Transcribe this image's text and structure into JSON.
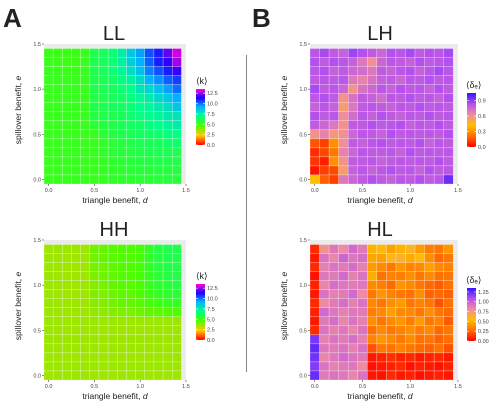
{
  "figure": {
    "panel_letters": [
      "A",
      "B"
    ],
    "divider_color": "#888888"
  },
  "chart_data": [
    {
      "type": "heatmap",
      "title": "LL",
      "xlabel": "triangle benefit, d",
      "ylabel": "spillover benefit, e",
      "xlim": [
        -0.05,
        1.5
      ],
      "ylim": [
        -0.05,
        1.5
      ],
      "xticks": [
        "0.0",
        "0.5",
        "1.0",
        "1.5"
      ],
      "yticks": [
        "0.0",
        "0.5",
        "1.0",
        "1.5"
      ],
      "colorbar_title": "⟨k⟩",
      "colorbar_ticks": [
        "0.0",
        "2.5",
        "5.0",
        "7.5",
        "10.0",
        "12.5"
      ],
      "colorbar_range": [
        0,
        13.5
      ],
      "colorscale": "rainbow",
      "grid_size": 15,
      "values_top_to_bottom": [
        [
          5.1,
          5.1,
          5.1,
          5.1,
          5.2,
          6,
          6.2,
          6.6,
          7.5,
          8.6,
          9.4,
          10.4,
          11,
          12,
          13
        ],
        [
          5.2,
          5.1,
          5.1,
          5.1,
          5.2,
          6,
          6.2,
          6.6,
          7.4,
          8.4,
          9.2,
          10.2,
          11,
          11.5,
          12.6
        ],
        [
          5.2,
          5.2,
          5.1,
          5.1,
          5.2,
          6,
          6.2,
          6.6,
          7.2,
          8,
          8.8,
          9.8,
          10.4,
          11,
          11.6
        ],
        [
          5.2,
          5.2,
          5.2,
          5.2,
          5.2,
          6,
          6.1,
          6.3,
          6.8,
          7.4,
          8.1,
          9.2,
          9.6,
          10.2,
          10.6
        ],
        [
          5.2,
          5.2,
          5.2,
          5.2,
          5.2,
          5.9,
          6.1,
          6.2,
          6.6,
          7,
          7.8,
          8.2,
          8.8,
          9.4,
          10
        ],
        [
          5.2,
          5.2,
          5.2,
          5.2,
          5.2,
          5.9,
          6,
          6.2,
          6.4,
          6.8,
          7.2,
          7.6,
          8.2,
          8.6,
          9.2
        ],
        [
          5.2,
          5.2,
          5.2,
          5.2,
          5.2,
          5.9,
          6,
          6.2,
          6.3,
          6.6,
          7,
          7.2,
          7.6,
          8,
          8.6
        ],
        [
          5.2,
          5.2,
          5.2,
          5.2,
          5.2,
          5.8,
          5.9,
          6,
          6.2,
          6.5,
          6.8,
          7,
          7.3,
          7.6,
          7.8
        ],
        [
          5.2,
          5.2,
          5.2,
          5.2,
          5.2,
          5.6,
          5.8,
          5.9,
          6.1,
          6.3,
          6.4,
          6.8,
          7,
          7.3,
          7.5
        ],
        [
          5.2,
          5.2,
          5.2,
          5.2,
          5.2,
          5.2,
          5.6,
          5.8,
          6,
          6.1,
          6.3,
          6.4,
          6.5,
          6.8,
          6.8
        ],
        [
          5.2,
          5.2,
          5.2,
          5.2,
          5.2,
          5.2,
          5.4,
          5.6,
          5.8,
          5.9,
          6.1,
          6.2,
          6.2,
          6.4,
          6.5
        ],
        [
          5.2,
          5.2,
          5.2,
          5.2,
          5.2,
          5.2,
          5.4,
          5.6,
          5.7,
          5.8,
          5.9,
          6,
          6.1,
          6.1,
          6.1
        ],
        [
          5.2,
          5.2,
          5.2,
          5.2,
          5.2,
          5.2,
          5.3,
          5.5,
          5.6,
          5.7,
          5.8,
          5.8,
          5.9,
          5.9,
          5.9
        ],
        [
          5.2,
          5.2,
          5.2,
          5.2,
          5.2,
          5.2,
          5.3,
          5.4,
          5.5,
          5.6,
          5.7,
          5.7,
          5.8,
          5.8,
          5.8
        ],
        [
          5.2,
          5.2,
          5.2,
          5.2,
          5.2,
          5.2,
          5.3,
          5.4,
          5.5,
          5.5,
          5.6,
          5.6,
          5.7,
          5.7,
          5.7
        ]
      ]
    },
    {
      "type": "heatmap",
      "title": "HH",
      "xlabel": "triangle benefit, d",
      "ylabel": "spillover benefit, e",
      "xlim": [
        -0.05,
        1.5
      ],
      "ylim": [
        -0.05,
        1.5
      ],
      "xticks": [
        "0.0",
        "0.5",
        "1.0",
        "1.5"
      ],
      "yticks": [
        "0.0",
        "0.5",
        "1.0",
        "1.5"
      ],
      "colorbar_title": "⟨k⟩",
      "colorbar_ticks": [
        "0.0",
        "2.5",
        "5.0",
        "7.5",
        "10.0",
        "12.5"
      ],
      "colorbar_range": [
        0,
        13.5
      ],
      "colorscale": "rainbow",
      "grid_size": 15,
      "values_top_to_bottom": [
        [
          3.6,
          3.6,
          3.6,
          3.6,
          3.6,
          4.2,
          4.3,
          4.5,
          4.6,
          4.6,
          4.8,
          5.4,
          5.8,
          6,
          6
        ],
        [
          3.6,
          3.6,
          3.6,
          3.6,
          3.6,
          4.2,
          4.3,
          4.5,
          4.6,
          4.6,
          4.8,
          5.4,
          5.8,
          5.9,
          6
        ],
        [
          3.6,
          3.6,
          3.6,
          3.6,
          3.6,
          4.1,
          4.2,
          4.4,
          4.6,
          4.6,
          4.8,
          5.4,
          5.7,
          5.9,
          5.9
        ],
        [
          3.6,
          3.6,
          3.6,
          3.6,
          3.6,
          4,
          4.2,
          4.4,
          4.5,
          4.6,
          4.8,
          5.3,
          5.6,
          5.8,
          5.9
        ],
        [
          3.6,
          3.6,
          3.6,
          3.6,
          3.6,
          3.9,
          4.1,
          4.3,
          4.5,
          4.5,
          4.7,
          5.2,
          5.5,
          5.7,
          5.8
        ],
        [
          3.6,
          3.6,
          3.6,
          3.6,
          3.6,
          3.9,
          4,
          4.2,
          4.4,
          4.4,
          4.6,
          5,
          5.3,
          5.5,
          5.6
        ],
        [
          3.6,
          3.6,
          3.6,
          3.6,
          3.6,
          3.8,
          3.9,
          4.1,
          4.3,
          4.3,
          4.5,
          4.8,
          5,
          5.2,
          5.3
        ],
        [
          3.6,
          3.6,
          3.6,
          3.6,
          3.6,
          3.7,
          3.8,
          3.9,
          4,
          4,
          4.2,
          4.3,
          4.4,
          4.5,
          4.6
        ],
        [
          3.6,
          3.6,
          3.6,
          3.6,
          3.6,
          3.6,
          3.6,
          3.6,
          3.6,
          3.6,
          3.6,
          3.6,
          3.6,
          3.6,
          3.6
        ],
        [
          3.6,
          3.6,
          3.6,
          3.6,
          3.6,
          3.6,
          3.6,
          3.6,
          3.6,
          3.6,
          3.6,
          3.6,
          3.6,
          3.6,
          3.6
        ],
        [
          3.6,
          3.6,
          3.6,
          3.6,
          3.6,
          3.6,
          3.6,
          3.6,
          3.6,
          3.6,
          3.6,
          3.6,
          3.6,
          3.6,
          3.6
        ],
        [
          3.6,
          3.6,
          3.6,
          3.6,
          3.6,
          3.6,
          3.6,
          3.6,
          3.6,
          3.6,
          3.6,
          3.6,
          3.6,
          3.6,
          3.6
        ],
        [
          3.6,
          3.6,
          3.6,
          3.6,
          3.6,
          3.6,
          3.6,
          3.6,
          3.6,
          3.6,
          3.6,
          3.6,
          3.6,
          3.6,
          3.6
        ],
        [
          3.6,
          3.6,
          3.6,
          3.6,
          3.6,
          3.6,
          3.6,
          3.6,
          3.6,
          3.6,
          3.6,
          3.6,
          3.6,
          3.6,
          3.6
        ],
        [
          3.6,
          3.6,
          3.6,
          3.6,
          3.6,
          3.6,
          3.6,
          3.6,
          3.6,
          3.6,
          3.6,
          3.6,
          3.6,
          3.6,
          3.6
        ]
      ]
    },
    {
      "type": "heatmap",
      "title": "LH",
      "xlabel": "triangle benefit, d",
      "ylabel": "spillover benefit, e",
      "xlim": [
        -0.05,
        1.5
      ],
      "ylim": [
        -0.05,
        1.5
      ],
      "xticks": [
        "0.0",
        "0.5",
        "1.0",
        "1.5"
      ],
      "yticks": [
        "0.0",
        "0.5",
        "1.0",
        "1.5"
      ],
      "colorbar_title": "⟨δₑ⟩",
      "colorbar_ticks": [
        "0.0",
        "0.3",
        "0.6",
        "0.9"
      ],
      "colorbar_range": [
        0,
        1.05
      ],
      "colorscale": "fire",
      "grid_size": 15,
      "values_top_to_bottom": [
        [
          0.82,
          0.86,
          0.8,
          0.78,
          0.88,
          0.84,
          0.8,
          0.76,
          0.84,
          0.82,
          0.86,
          0.8,
          0.84,
          0.82,
          0.86
        ],
        [
          0.84,
          0.8,
          0.84,
          0.82,
          0.78,
          0.7,
          0.62,
          0.76,
          0.82,
          0.8,
          0.78,
          0.84,
          0.8,
          0.82,
          0.84
        ],
        [
          0.82,
          0.84,
          0.78,
          0.8,
          0.76,
          0.74,
          0.7,
          0.8,
          0.78,
          0.82,
          0.84,
          0.78,
          0.82,
          0.86,
          0.82
        ],
        [
          0.8,
          0.82,
          0.8,
          0.82,
          0.7,
          0.66,
          0.72,
          0.78,
          0.8,
          0.76,
          0.82,
          0.8,
          0.84,
          0.8,
          0.82
        ],
        [
          0.86,
          0.8,
          0.82,
          0.76,
          0.6,
          0.72,
          0.76,
          0.82,
          0.78,
          0.84,
          0.8,
          0.82,
          0.78,
          0.84,
          0.8
        ],
        [
          0.82,
          0.84,
          0.8,
          0.6,
          0.72,
          0.8,
          0.78,
          0.74,
          0.82,
          0.8,
          0.84,
          0.8,
          0.82,
          0.78,
          0.84
        ],
        [
          0.78,
          0.82,
          0.78,
          0.56,
          0.7,
          0.8,
          0.82,
          0.8,
          0.78,
          0.82,
          0.8,
          0.84,
          0.8,
          0.82,
          0.8
        ],
        [
          0.84,
          0.8,
          0.82,
          0.62,
          0.74,
          0.82,
          0.78,
          0.84,
          0.8,
          0.78,
          0.82,
          0.8,
          0.84,
          0.8,
          0.82
        ],
        [
          0.8,
          0.76,
          0.7,
          0.6,
          0.8,
          0.8,
          0.84,
          0.8,
          0.82,
          0.84,
          0.78,
          0.82,
          0.8,
          0.84,
          0.8
        ],
        [
          0.6,
          0.66,
          0.58,
          0.62,
          0.76,
          0.82,
          0.8,
          0.78,
          0.84,
          0.8,
          0.82,
          0.8,
          0.82,
          0.8,
          0.84
        ],
        [
          0.16,
          0.12,
          0.3,
          0.62,
          0.8,
          0.78,
          0.82,
          0.84,
          0.8,
          0.82,
          0.8,
          0.84,
          0.78,
          0.82,
          0.8
        ],
        [
          0.08,
          0.14,
          0.24,
          0.66,
          0.76,
          0.82,
          0.8,
          0.8,
          0.82,
          0.78,
          0.84,
          0.8,
          0.82,
          0.8,
          0.82
        ],
        [
          0.1,
          0.06,
          0.3,
          0.6,
          0.8,
          0.8,
          0.82,
          0.78,
          0.8,
          0.82,
          0.8,
          0.82,
          0.8,
          0.84,
          0.8
        ],
        [
          0.04,
          0.12,
          0.14,
          0.56,
          0.78,
          0.82,
          0.78,
          0.82,
          0.84,
          0.8,
          0.82,
          0.78,
          0.84,
          0.8,
          0.82
        ],
        [
          0.42,
          0.18,
          0.12,
          0.7,
          0.76,
          0.8,
          0.84,
          0.8,
          0.78,
          0.82,
          0.8,
          0.84,
          0.8,
          0.82,
          0.96
        ]
      ]
    },
    {
      "type": "heatmap",
      "title": "HL",
      "xlabel": "triangle benefit, d",
      "ylabel": "spillover benefit, e",
      "xlim": [
        -0.05,
        1.5
      ],
      "ylim": [
        -0.05,
        1.5
      ],
      "xticks": [
        "0.0",
        "0.5",
        "1.0",
        "1.5"
      ],
      "yticks": [
        "0.0",
        "0.5",
        "1.0",
        "1.5"
      ],
      "colorbar_title": "⟨δₑ⟩",
      "colorbar_ticks": [
        "0.00",
        "0.25",
        "0.50",
        "0.75",
        "1.00",
        "1.25"
      ],
      "colorbar_range": [
        0,
        1.35
      ],
      "colorscale": "fire",
      "grid_size": 15,
      "values_top_to_bottom": [
        [
          0.1,
          0.78,
          0.9,
          0.82,
          0.96,
          0.88,
          0.5,
          0.56,
          0.44,
          0.5,
          0.6,
          0.42,
          0.32,
          0.3,
          0.4
        ],
        [
          0.06,
          0.92,
          0.84,
          0.98,
          0.9,
          0.94,
          0.46,
          0.44,
          0.58,
          0.62,
          0.48,
          0.56,
          0.38,
          0.26,
          0.3
        ],
        [
          0.1,
          0.86,
          0.92,
          0.88,
          0.94,
          0.86,
          0.42,
          0.36,
          0.3,
          0.4,
          0.34,
          0.36,
          0.44,
          0.36,
          0.34
        ],
        [
          0.04,
          0.9,
          0.88,
          0.96,
          0.86,
          0.92,
          0.48,
          0.28,
          0.34,
          0.32,
          0.38,
          0.3,
          0.36,
          0.28,
          0.3
        ],
        [
          0.08,
          0.84,
          0.94,
          0.9,
          0.88,
          0.9,
          0.36,
          0.32,
          0.26,
          0.4,
          0.36,
          0.3,
          0.26,
          0.22,
          0.28
        ],
        [
          0.06,
          0.92,
          0.86,
          0.88,
          0.96,
          0.82,
          0.3,
          0.4,
          0.34,
          0.3,
          0.28,
          0.38,
          0.24,
          0.26,
          0.24
        ],
        [
          0.1,
          0.82,
          0.88,
          0.94,
          0.86,
          0.92,
          0.36,
          0.3,
          0.38,
          0.42,
          0.3,
          0.34,
          0.3,
          0.2,
          0.28
        ],
        [
          0.08,
          0.96,
          0.9,
          0.86,
          0.9,
          0.88,
          0.32,
          0.36,
          0.44,
          0.36,
          0.36,
          0.3,
          0.38,
          0.3,
          0.26
        ],
        [
          0.06,
          0.88,
          0.94,
          0.84,
          0.92,
          0.86,
          0.38,
          0.3,
          0.36,
          0.4,
          0.32,
          0.42,
          0.3,
          0.34,
          0.22
        ],
        [
          0.1,
          0.92,
          0.86,
          0.9,
          0.84,
          0.92,
          0.28,
          0.36,
          0.3,
          0.34,
          0.38,
          0.32,
          0.36,
          0.26,
          0.3
        ],
        [
          1.2,
          0.86,
          0.92,
          0.88,
          0.94,
          0.86,
          0.34,
          0.4,
          0.36,
          0.3,
          0.36,
          0.28,
          0.3,
          0.24,
          0.28
        ],
        [
          1.25,
          0.9,
          0.88,
          0.92,
          0.86,
          0.92,
          0.2,
          0.3,
          0.28,
          0.34,
          0.3,
          0.26,
          0.24,
          0.28,
          0.2
        ],
        [
          1.22,
          0.84,
          0.9,
          0.96,
          0.92,
          0.88,
          0.06,
          0.08,
          0.12,
          0.08,
          0.1,
          0.06,
          0.08,
          0.1,
          0.06
        ],
        [
          1.18,
          0.92,
          0.86,
          0.88,
          0.9,
          0.82,
          0.04,
          0.06,
          0.08,
          0.1,
          0.04,
          0.08,
          0.06,
          0.04,
          0.08
        ],
        [
          1.24,
          0.88,
          0.92,
          0.9,
          0.84,
          0.92,
          0.06,
          0.04,
          0.1,
          0.06,
          0.08,
          0.04,
          0.06,
          0.08,
          0.06
        ]
      ]
    }
  ]
}
